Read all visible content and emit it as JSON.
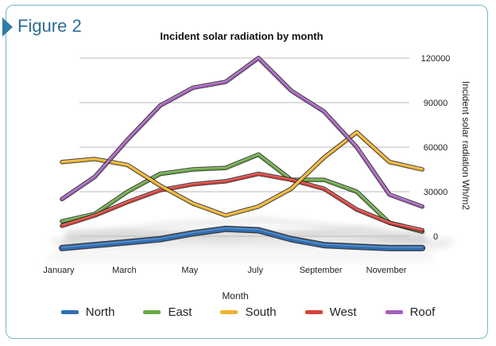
{
  "figure_label": "Figure 2",
  "chart_data": {
    "type": "line",
    "title": "Incident solar radiation by month",
    "xlabel": "Month",
    "ylabel": "Incident solar radiation Wh/m2",
    "x_tick_labels": [
      "January",
      "March",
      "May",
      "July",
      "September",
      "November"
    ],
    "categories": [
      "January",
      "February",
      "March",
      "April",
      "May",
      "June",
      "July",
      "August",
      "September",
      "October",
      "November",
      "December"
    ],
    "y_ticks": [
      0,
      30000,
      60000,
      90000,
      120000
    ],
    "y_tick_labels": [
      "0",
      "30000",
      "60000",
      "90000",
      "120000"
    ],
    "ylim": [
      0,
      120000
    ],
    "grid": true,
    "legend_position": "bottom",
    "series": [
      {
        "name": "North",
        "color": "#2f6eb3",
        "values": [
          -8000,
          -6000,
          -4000,
          -2000,
          2000,
          5000,
          4000,
          -2000,
          -6000,
          -7000,
          -8000,
          -8000
        ]
      },
      {
        "name": "East",
        "color": "#6aaa43",
        "values": [
          10000,
          15000,
          30000,
          42000,
          45000,
          46000,
          55000,
          38000,
          38000,
          30000,
          9000,
          3000
        ]
      },
      {
        "name": "South",
        "color": "#efb331",
        "values": [
          50000,
          52000,
          48000,
          34000,
          22000,
          14000,
          20000,
          32000,
          53000,
          70000,
          50000,
          45000
        ]
      },
      {
        "name": "West",
        "color": "#d8413a",
        "values": [
          7000,
          14000,
          23000,
          31000,
          35000,
          37000,
          42000,
          38000,
          32000,
          18000,
          9000,
          4000
        ]
      },
      {
        "name": "Roof",
        "color": "#a45fbd",
        "values": [
          25000,
          40000,
          65000,
          88000,
          100000,
          104000,
          120000,
          98000,
          84000,
          60000,
          28000,
          20000
        ]
      }
    ]
  }
}
